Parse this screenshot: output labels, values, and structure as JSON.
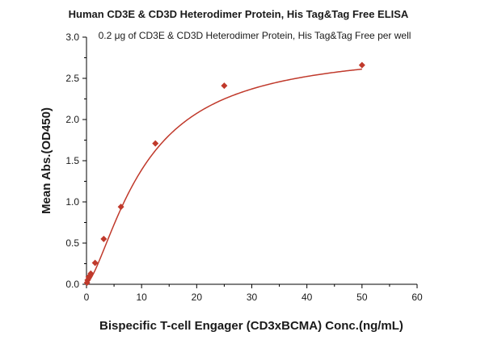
{
  "chart_data": {
    "type": "scatter",
    "title": "Human CD3E & CD3D Heterodimer Protein, His Tag&Tag Free ELISA",
    "subtitle": "0.2 μg of CD3E & CD3D Heterodimer Protein, His Tag&Tag Free per well",
    "xlabel": "Bispecific T-cell Engager (CD3xBCMA) Conc.(ng/mL)",
    "ylabel": "Mean Abs.(OD450)",
    "xlim": [
      0,
      60
    ],
    "ylim": [
      0,
      3.0
    ],
    "xticks": [
      "0",
      "10",
      "20",
      "30",
      "40",
      "50",
      "60"
    ],
    "yticks": [
      "0.0",
      "0.5",
      "1.0",
      "1.5",
      "2.0",
      "2.5",
      "3.0"
    ],
    "grid": false,
    "series": [
      {
        "x": [
          0.098,
          0.195,
          0.39,
          0.78,
          1.56,
          3.13,
          6.25,
          12.5,
          25,
          50
        ],
        "y": [
          0.02,
          0.05,
          0.09,
          0.13,
          0.26,
          0.55,
          0.94,
          1.71,
          2.41,
          2.66
        ],
        "color": "#c0392b",
        "marker": "diamond",
        "fit": "logistic"
      }
    ]
  }
}
